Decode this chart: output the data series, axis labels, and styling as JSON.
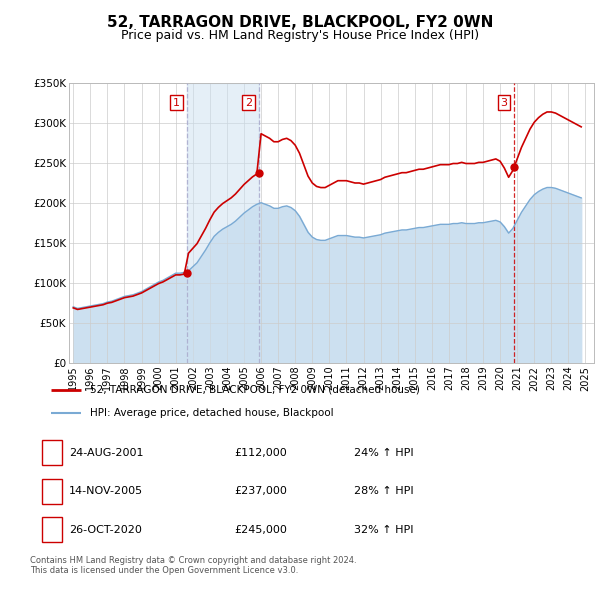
{
  "title": "52, TARRAGON DRIVE, BLACKPOOL, FY2 0WN",
  "subtitle": "Price paid vs. HM Land Registry's House Price Index (HPI)",
  "title_fontsize": 11,
  "subtitle_fontsize": 9,
  "ylim": [
    0,
    350000
  ],
  "yticks": [
    0,
    50000,
    100000,
    150000,
    200000,
    250000,
    300000,
    350000
  ],
  "ytick_labels": [
    "£0",
    "£50K",
    "£100K",
    "£150K",
    "£200K",
    "£250K",
    "£300K",
    "£350K"
  ],
  "xlim_start": 1994.75,
  "xlim_end": 2025.5,
  "grid_color": "#cccccc",
  "background_color": "#ffffff",
  "plot_bg_color": "#ffffff",
  "sale_color": "#cc0000",
  "hpi_color": "#7aaad4",
  "hpi_fill_color": "#cce0f0",
  "purchase_dates": [
    2001.648,
    2005.869,
    2020.831
  ],
  "purchase_prices": [
    112000,
    237000,
    245000
  ],
  "purchase_labels": [
    "1",
    "2",
    "3"
  ],
  "legend_items": [
    {
      "label": "52, TARRAGON DRIVE, BLACKPOOL, FY2 0WN (detached house)",
      "color": "#cc0000",
      "lw": 2
    },
    {
      "label": "HPI: Average price, detached house, Blackpool",
      "color": "#7aaad4",
      "lw": 1.5
    }
  ],
  "table_rows": [
    {
      "num": "1",
      "date": "24-AUG-2001",
      "price": "£112,000",
      "change": "24% ↑ HPI"
    },
    {
      "num": "2",
      "date": "14-NOV-2005",
      "price": "£237,000",
      "change": "28% ↑ HPI"
    },
    {
      "num": "3",
      "date": "26-OCT-2020",
      "price": "£245,000",
      "change": "32% ↑ HPI"
    }
  ],
  "footer_text": "Contains HM Land Registry data © Crown copyright and database right 2024.\nThis data is licensed under the Open Government Licence v3.0.",
  "hpi_x": [
    1995.0,
    1995.25,
    1995.5,
    1995.75,
    1996.0,
    1996.25,
    1996.5,
    1996.75,
    1997.0,
    1997.25,
    1997.5,
    1997.75,
    1998.0,
    1998.25,
    1998.5,
    1998.75,
    1999.0,
    1999.25,
    1999.5,
    1999.75,
    2000.0,
    2000.25,
    2000.5,
    2000.75,
    2001.0,
    2001.25,
    2001.5,
    2001.75,
    2002.0,
    2002.25,
    2002.5,
    2002.75,
    2003.0,
    2003.25,
    2003.5,
    2003.75,
    2004.0,
    2004.25,
    2004.5,
    2004.75,
    2005.0,
    2005.25,
    2005.5,
    2005.75,
    2006.0,
    2006.25,
    2006.5,
    2006.75,
    2007.0,
    2007.25,
    2007.5,
    2007.75,
    2008.0,
    2008.25,
    2008.5,
    2008.75,
    2009.0,
    2009.25,
    2009.5,
    2009.75,
    2010.0,
    2010.25,
    2010.5,
    2010.75,
    2011.0,
    2011.25,
    2011.5,
    2011.75,
    2012.0,
    2012.25,
    2012.5,
    2012.75,
    2013.0,
    2013.25,
    2013.5,
    2013.75,
    2014.0,
    2014.25,
    2014.5,
    2014.75,
    2015.0,
    2015.25,
    2015.5,
    2015.75,
    2016.0,
    2016.25,
    2016.5,
    2016.75,
    2017.0,
    2017.25,
    2017.5,
    2017.75,
    2018.0,
    2018.25,
    2018.5,
    2018.75,
    2019.0,
    2019.25,
    2019.5,
    2019.75,
    2020.0,
    2020.25,
    2020.5,
    2020.75,
    2021.0,
    2021.25,
    2021.5,
    2021.75,
    2022.0,
    2022.25,
    2022.5,
    2022.75,
    2023.0,
    2023.25,
    2023.5,
    2023.75,
    2024.0,
    2024.25,
    2024.5,
    2024.75
  ],
  "hpi_y": [
    70000,
    68000,
    69000,
    70000,
    71000,
    72000,
    73000,
    74000,
    76000,
    77000,
    79000,
    81000,
    83000,
    84000,
    85000,
    87000,
    89000,
    92000,
    95000,
    98000,
    101000,
    103000,
    106000,
    109000,
    112000,
    112000,
    113000,
    115000,
    120000,
    125000,
    133000,
    141000,
    150000,
    158000,
    163000,
    167000,
    170000,
    173000,
    177000,
    182000,
    187000,
    191000,
    195000,
    198000,
    200000,
    198000,
    196000,
    193000,
    193000,
    195000,
    196000,
    194000,
    190000,
    183000,
    173000,
    163000,
    157000,
    154000,
    153000,
    153000,
    155000,
    157000,
    159000,
    159000,
    159000,
    158000,
    157000,
    157000,
    156000,
    157000,
    158000,
    159000,
    160000,
    162000,
    163000,
    164000,
    165000,
    166000,
    166000,
    167000,
    168000,
    169000,
    169000,
    170000,
    171000,
    172000,
    173000,
    173000,
    173000,
    174000,
    174000,
    175000,
    174000,
    174000,
    174000,
    175000,
    175000,
    176000,
    177000,
    178000,
    176000,
    170000,
    162000,
    168000,
    178000,
    188000,
    196000,
    204000,
    210000,
    214000,
    217000,
    219000,
    219000,
    218000,
    216000,
    214000,
    212000,
    210000,
    208000,
    206000
  ]
}
